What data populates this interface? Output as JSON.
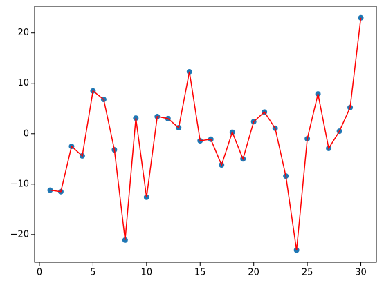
{
  "chart_data": {
    "type": "line",
    "x": [
      1,
      2,
      3,
      4,
      5,
      6,
      7,
      8,
      9,
      10,
      11,
      12,
      13,
      14,
      15,
      16,
      17,
      18,
      19,
      20,
      21,
      22,
      23,
      24,
      25,
      26,
      27,
      28,
      29,
      30
    ],
    "values": [
      -11.2,
      -11.5,
      -2.5,
      -4.4,
      8.5,
      6.8,
      -3.2,
      -21.1,
      3.1,
      -12.6,
      3.4,
      3.0,
      1.2,
      12.3,
      -1.4,
      -1.1,
      -6.2,
      0.3,
      -5.0,
      2.4,
      4.3,
      1.1,
      -8.4,
      -23.1,
      -1.0,
      7.9,
      -2.9,
      0.5,
      5.2,
      23.0
    ],
    "line_color": "#ff0000",
    "marker_color": "#1f77b4",
    "xlim": [
      -0.45,
      31.45
    ],
    "xticks": [
      0,
      5,
      10,
      15,
      20,
      25,
      30
    ],
    "ylim": [
      -25.5,
      25.3
    ],
    "yticks": [
      {
        "value": -20,
        "label": "−20"
      },
      {
        "value": -10,
        "label": "−10"
      },
      0,
      10,
      20
    ]
  }
}
